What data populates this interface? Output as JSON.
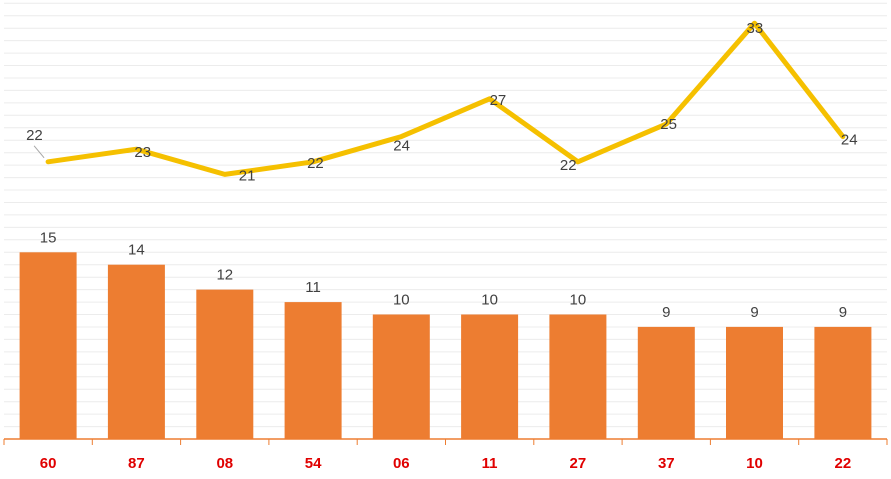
{
  "chart_data": {
    "type": "bar",
    "title": "",
    "xlabel": "",
    "ylabel": "",
    "categories": [
      "60",
      "87",
      "08",
      "54",
      "06",
      "11",
      "27",
      "37",
      "10",
      "22"
    ],
    "series": [
      {
        "type": "bar",
        "values": [
          15,
          14,
          12,
          11,
          10,
          10,
          10,
          9,
          9,
          9
        ],
        "color": "#ED7D31"
      },
      {
        "type": "line",
        "values": [
          22,
          23,
          21,
          22,
          24,
          27,
          22,
          25,
          33,
          24
        ],
        "color": "#F5C000"
      }
    ],
    "category_label_color": "#E00000",
    "axis_color": "#ED7D31",
    "grid": true,
    "legend": "none"
  }
}
